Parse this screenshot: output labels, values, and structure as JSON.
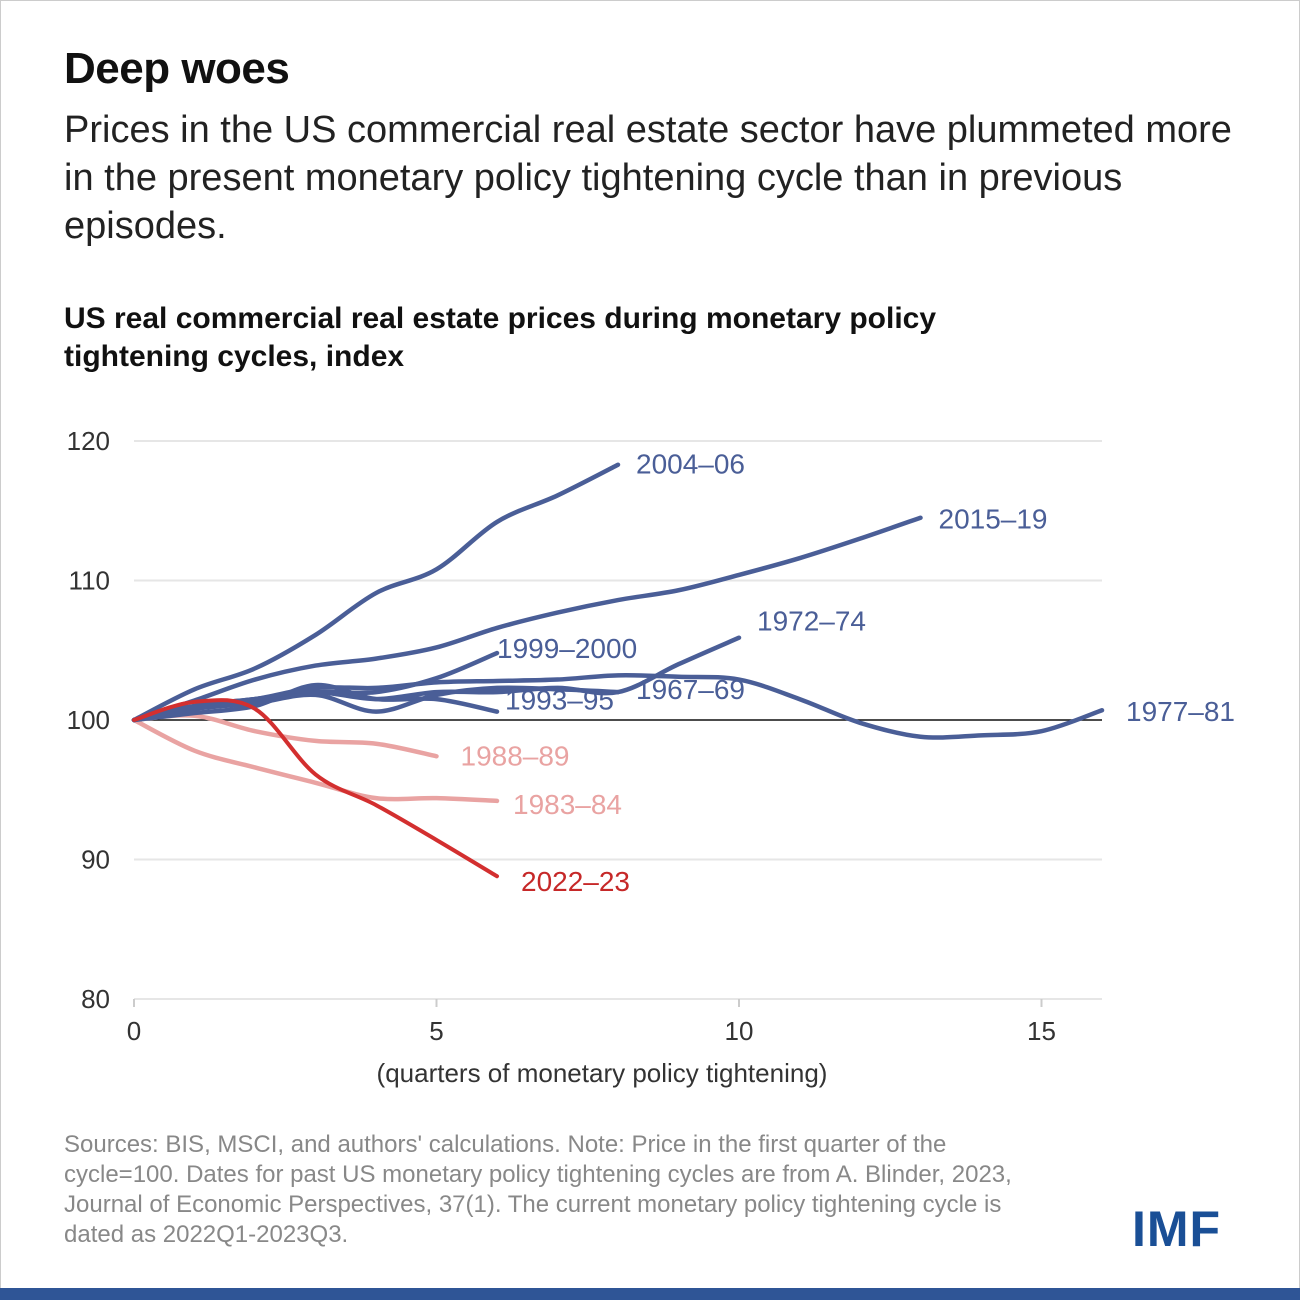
{
  "header": {
    "title": "Deep woes",
    "subtitle": "Prices in the US commercial real estate sector have plummeted more in the present monetary policy tightening cycle than in previous episodes."
  },
  "chart_data": {
    "type": "line",
    "title": "US real commercial real estate prices during monetary policy tightening cycles, index",
    "xlabel": "(quarters of monetary policy tightening)",
    "ylabel": "",
    "xlim": [
      0,
      16
    ],
    "ylim": [
      80,
      120
    ],
    "xticks": [
      0,
      5,
      10,
      15
    ],
    "yticks": [
      80,
      90,
      100,
      110,
      120
    ],
    "grid": "horizontal",
    "reference_line": 100,
    "legend": "direct labels at line ends",
    "series": [
      {
        "name": "2004–06",
        "color": "#4a5e97",
        "values": [
          100,
          102.2,
          103.7,
          106.1,
          109.1,
          110.8,
          114.2,
          116.1,
          118.3
        ]
      },
      {
        "name": "2015–19",
        "color": "#4a5e97",
        "values": [
          100,
          101.4,
          102.9,
          103.9,
          104.4,
          105.2,
          106.6,
          107.7,
          108.6,
          109.3,
          110.4,
          111.6,
          113.0,
          114.5
        ]
      },
      {
        "name": "1972–74",
        "color": "#4a5e97",
        "values": [
          100,
          101,
          101.5,
          102,
          101.5,
          102,
          102,
          102.3,
          102,
          104,
          105.9
        ]
      },
      {
        "name": "1999–2000",
        "color": "#4a5e97",
        "values": [
          100,
          101,
          101.5,
          102,
          102,
          103,
          104.8
        ]
      },
      {
        "name": "1993–95",
        "color": "#4a5e97",
        "values": [
          100,
          100.5,
          101,
          102.5,
          101.5,
          101.5,
          100.6
        ]
      },
      {
        "name": "1967–69",
        "color": "#4a5e97",
        "values": [
          100,
          100.8,
          101.2,
          101.8,
          100.6,
          101.8,
          102.3,
          102.2,
          102.0
        ]
      },
      {
        "name": "1977–81",
        "color": "#4a5e97",
        "values": [
          100,
          101,
          101.5,
          102.3,
          102.3,
          102.7,
          102.8,
          102.9,
          103.2,
          103.1,
          102.9,
          101.5,
          99.8,
          98.8,
          98.9,
          99.2,
          100.7
        ]
      },
      {
        "name": "1988–89",
        "color": "#e9a3a2",
        "values": [
          100,
          100.3,
          99.2,
          98.5,
          98.3,
          97.4
        ]
      },
      {
        "name": "1983–84",
        "color": "#e9a3a2",
        "values": [
          100,
          97.8,
          96.6,
          95.5,
          94.4,
          94.4,
          94.2
        ]
      },
      {
        "name": "2022–23",
        "color": "#d32f2f",
        "values": [
          100,
          101.3,
          100.8,
          96.1,
          93.9,
          91.4,
          88.8
        ]
      }
    ]
  },
  "footer": {
    "notes": "Sources: BIS, MSCI, and authors' calculations. Note: Price in the first quarter of the cycle=100. Dates for past US monetary policy tightening cycles are from A. Blinder, 2023, Journal of Economic Perspectives, 37(1). The current monetary policy tightening cycle is dated as 2022Q1-2023Q3.",
    "logo": "IMF"
  },
  "colors": {
    "logo": "#1a4f96",
    "bottom_bar": "#2f5596"
  }
}
